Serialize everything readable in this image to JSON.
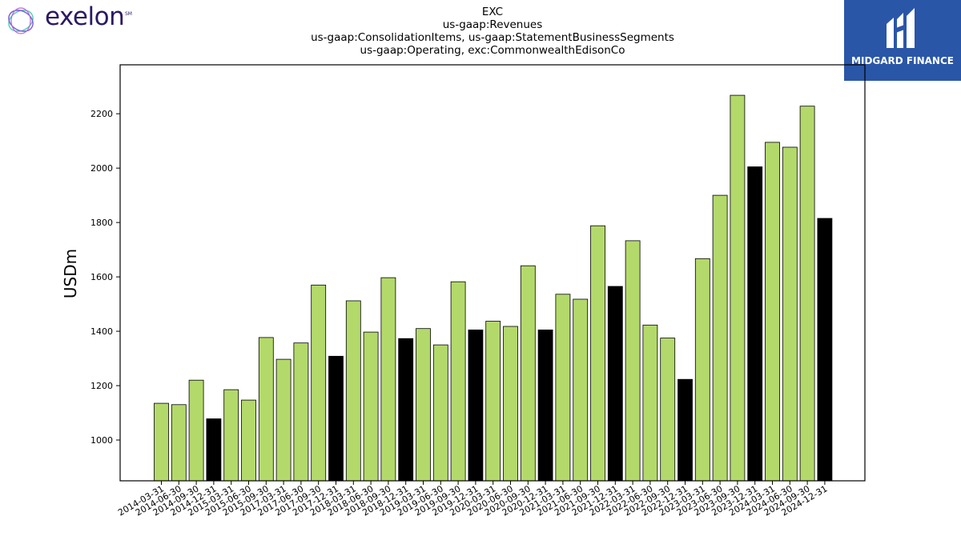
{
  "logos": {
    "left_text": "exelon",
    "left_mark": "SM",
    "right_text": "MIDGARD FINANCE"
  },
  "title_lines": [
    "EXC",
    "us-gaap:Revenues",
    "us-gaap:ConsolidationItems, us-gaap:StatementBusinessSegments",
    "us-gaap:Operating, exc:CommonwealthEdisonCo"
  ],
  "colors": {
    "quarter": "#b3d96b",
    "year_end": "#000000",
    "logo_bg": "#2a56a8"
  },
  "chart_data": {
    "type": "bar",
    "title": "EXC\nus-gaap:Revenues\nus-gaap:ConsolidationItems, us-gaap:StatementBusinessSegments\nus-gaap:Operating, exc:CommonwealthEdisonCo",
    "xlabel": "",
    "ylabel": "USDm",
    "ylim": [
      850,
      2380
    ],
    "yticks": [
      1000,
      1200,
      1400,
      1600,
      1800,
      2000,
      2200
    ],
    "grid": false,
    "categories": [
      "2014-03-31",
      "2014-06-30",
      "2014-09-30",
      "2014-12-31",
      "2015-03-31",
      "2015-06-30",
      "2015-09-30",
      "2017-03-31",
      "2017-06-30",
      "2017-09-30",
      "2017-12-31",
      "2018-03-31",
      "2018-06-30",
      "2018-09-30",
      "2018-12-31",
      "2019-03-31",
      "2019-06-30",
      "2019-09-30",
      "2019-12-31",
      "2020-03-31",
      "2020-06-30",
      "2020-09-30",
      "2020-12-31",
      "2021-03-31",
      "2021-06-30",
      "2021-09-30",
      "2021-12-31",
      "2022-03-31",
      "2022-06-30",
      "2022-09-30",
      "2022-12-31",
      "2023-03-31",
      "2023-06-30",
      "2023-09-30",
      "2023-12-31",
      "2024-03-31",
      "2024-06-30",
      "2024-09-30",
      "2024-12-31"
    ],
    "values": [
      1135,
      1130,
      1220,
      1078,
      1185,
      1147,
      1377,
      1297,
      1357,
      1570,
      1308,
      1512,
      1397,
      1597,
      1373,
      1410,
      1350,
      1582,
      1405,
      1437,
      1418,
      1641,
      1405,
      1536,
      1518,
      1788,
      1565,
      1733,
      1423,
      1375,
      1223,
      1667,
      1900,
      2268,
      2005,
      2095,
      2077,
      2228,
      1815
    ],
    "year_end": [
      false,
      false,
      false,
      true,
      false,
      false,
      false,
      false,
      false,
      false,
      true,
      false,
      false,
      false,
      true,
      false,
      false,
      false,
      true,
      false,
      false,
      false,
      true,
      false,
      false,
      false,
      true,
      false,
      false,
      false,
      true,
      false,
      false,
      false,
      true,
      false,
      false,
      false,
      true
    ]
  }
}
